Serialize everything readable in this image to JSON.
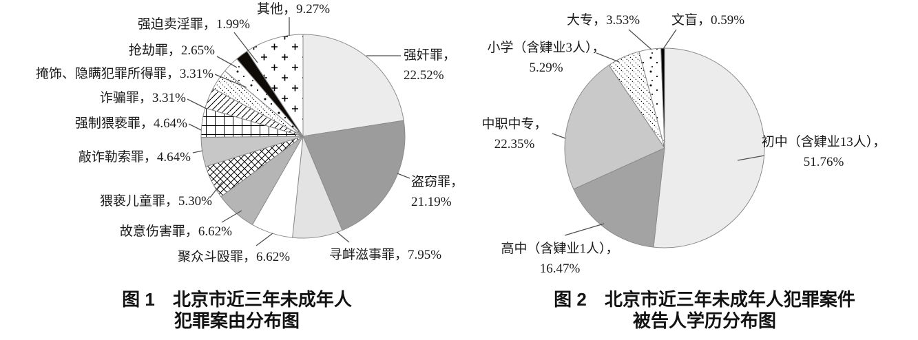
{
  "figure1": {
    "caption_line1": "图 1　北京市近三年未成年人",
    "caption_line2": "犯罪案由分布图"
  },
  "figure2": {
    "caption_line1": "图 2　北京市近三年未成年人犯罪案件",
    "caption_line2": "被告人学历分布图"
  },
  "chart_data": [
    {
      "type": "pie",
      "title": "图1 北京市近三年未成年人犯罪案由分布图",
      "start_angle": "12-oclock",
      "direction": "clockwise",
      "slices": [
        {
          "name": "强奸罪",
          "value": 22.52,
          "label": "强奸罪，22.52%",
          "label_lines": [
            "强奸罪，",
            "22.52%"
          ],
          "fill": {
            "type": "color",
            "value": "#ececec"
          }
        },
        {
          "name": "盗窃罪",
          "value": 21.19,
          "label": "盗窃罪，21.19%",
          "label_lines": [
            "盗窃罪，",
            "21.19%"
          ],
          "fill": {
            "type": "color",
            "value": "#9c9c9c"
          }
        },
        {
          "name": "寻衅滋事罪",
          "value": 7.95,
          "label": "寻衅滋事罪，7.95%",
          "fill": {
            "type": "color",
            "value": "#e3e3e3"
          }
        },
        {
          "name": "聚众斗殴罪",
          "value": 6.62,
          "label": "聚众斗殴罪，6.62%",
          "fill": {
            "type": "color",
            "value": "#ffffff"
          }
        },
        {
          "name": "故意伤害罪",
          "value": 6.62,
          "label": "故意伤害罪，6.62%",
          "fill": {
            "type": "color",
            "value": "#b5b5b5"
          }
        },
        {
          "name": "猥亵儿童罪",
          "value": 5.3,
          "label": "猥亵儿童罪，5.30%",
          "fill": {
            "type": "pattern",
            "value": "cross"
          }
        },
        {
          "name": "敲诈勒索罪",
          "value": 4.64,
          "label": "敲诈勒索罪，4.64%",
          "fill": {
            "type": "color",
            "value": "#c7c7c7"
          }
        },
        {
          "name": "强制猥亵罪",
          "value": 4.64,
          "label": "强制猥亵罪，4.64%",
          "fill": {
            "type": "pattern",
            "value": "grid"
          }
        },
        {
          "name": "诈骗罪",
          "value": 3.31,
          "label": "诈骗罪，3.31%",
          "fill": {
            "type": "pattern",
            "value": "hatch"
          }
        },
        {
          "name": "掩饰、隐瞒犯罪所得罪",
          "value": 3.31,
          "label": "掩饰、隐瞒犯罪所得罪，3.31%",
          "fill": {
            "type": "pattern",
            "value": "dotline"
          }
        },
        {
          "name": "抢劫罪",
          "value": 2.65,
          "label": "抢劫罪，2.65%",
          "fill": {
            "type": "pattern",
            "value": "dots"
          }
        },
        {
          "name": "强迫卖淫罪",
          "value": 1.99,
          "label": "强迫卖淫罪，1.99%",
          "fill": {
            "type": "color",
            "value": "#0e0a06"
          }
        },
        {
          "name": "其他",
          "value": 9.27,
          "label": "其他，9.27%",
          "fill": {
            "type": "pattern",
            "value": "plus"
          }
        }
      ]
    },
    {
      "type": "pie",
      "title": "图2 北京市近三年未成年人犯罪案件被告人学历分布图",
      "start_angle": "12-oclock",
      "direction": "clockwise",
      "slices": [
        {
          "name": "初中（含肄业13人）",
          "value": 51.76,
          "label": "初中（含肄业13人），51.76%",
          "label_lines": [
            "初中（含肄业13人），",
            "51.76%"
          ],
          "fill": {
            "type": "color",
            "value": "#ececec"
          }
        },
        {
          "name": "高中（含肄业1人）",
          "value": 16.47,
          "label": "高中（含肄业1人），16.47%",
          "label_lines": [
            "高中（含肄业1人），",
            "16.47%"
          ],
          "fill": {
            "type": "color",
            "value": "#a3a3a3"
          }
        },
        {
          "name": "中职中专",
          "value": 22.35,
          "label": "中职中专，22.35%",
          "label_lines": [
            "中职中专，",
            "22.35%"
          ],
          "fill": {
            "type": "color",
            "value": "#c9c9c9"
          }
        },
        {
          "name": "小学（含肄业3人）",
          "value": 5.29,
          "label": "小学（含肄业3人），5.29%",
          "label_lines": [
            "小学（含肄业3人），",
            "5.29%"
          ],
          "fill": {
            "type": "pattern",
            "value": "dotline"
          }
        },
        {
          "name": "大专",
          "value": 3.53,
          "label": "大专，3.53%",
          "fill": {
            "type": "pattern",
            "value": "dots"
          }
        },
        {
          "name": "文盲",
          "value": 0.59,
          "label": "文盲，0.59%",
          "fill": {
            "type": "color",
            "value": "#000000"
          }
        }
      ]
    }
  ]
}
